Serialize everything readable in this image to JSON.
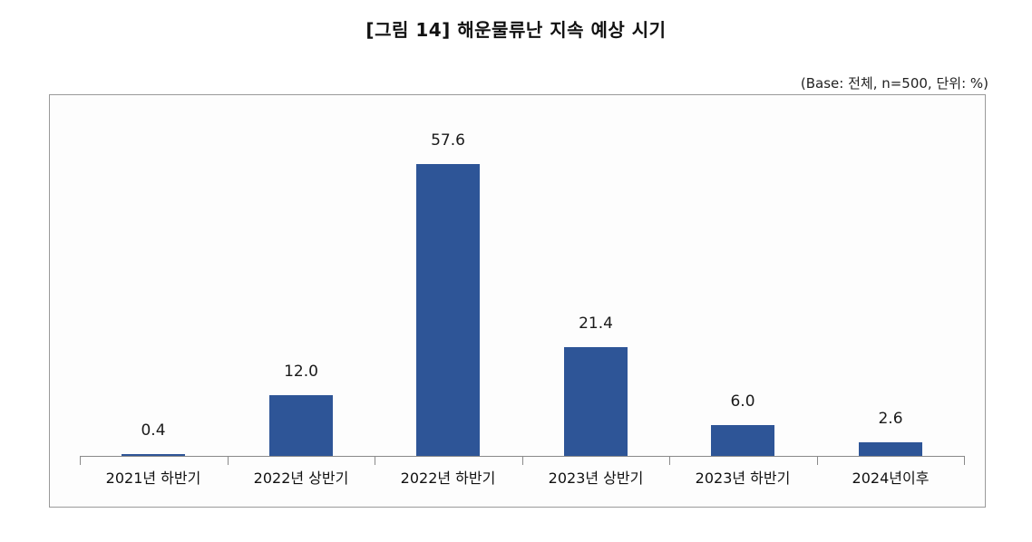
{
  "figure": {
    "title": "[그림 14] 해운물류난 지속 예상 시기",
    "note": "(Base: 전체, n=500, 단위: %)"
  },
  "chart_data": {
    "type": "bar",
    "title": "[그림 14] 해운물류난 지속 예상 시기",
    "subtitle": "(Base: 전체, n=500, 단위: %)",
    "categories": [
      "2021년 하반기",
      "2022년 상반기",
      "2022년 하반기",
      "2023년 상반기",
      "2023년 하반기",
      "2024년이후"
    ],
    "values": [
      0.4,
      12.0,
      57.6,
      21.4,
      6.0,
      2.6
    ],
    "value_labels": [
      "0.4",
      "12.0",
      "57.6",
      "21.4",
      "6.0",
      "2.6"
    ],
    "xlabel": "",
    "ylabel": "",
    "ylim": [
      0,
      60
    ],
    "grid": false,
    "legend": null,
    "bar_color": "#2e5597"
  }
}
